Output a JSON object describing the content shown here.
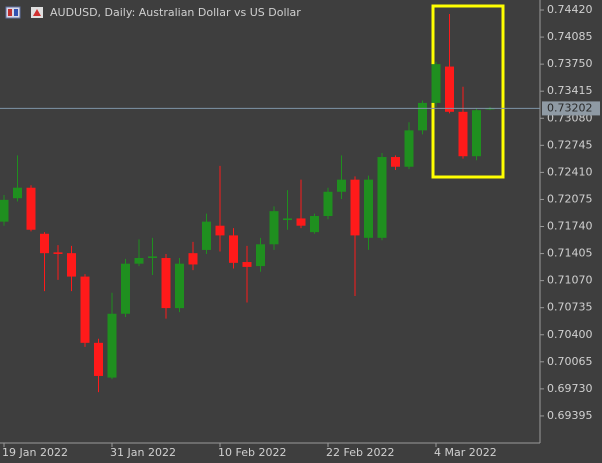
{
  "chart_data": {
    "type": "candlestick",
    "title": "AUDUSD, Daily:  Australian Dollar vs US Dollar",
    "categories": [
      "19 Jan 2022",
      null,
      null,
      null,
      null,
      null,
      null,
      null,
      "31 Jan 2022",
      null,
      null,
      null,
      null,
      null,
      null,
      null,
      "10 Feb 2022",
      null,
      null,
      null,
      null,
      null,
      null,
      null,
      "22 Feb 2022",
      null,
      null,
      null,
      null,
      null,
      null,
      null,
      "4 Mar 2022",
      null,
      null,
      null,
      null
    ],
    "open": [
      0.718,
      0.7209,
      0.7222,
      0.7165,
      0.7142,
      0.7141,
      0.7112,
      0.703,
      0.6987,
      0.7066,
      0.7128,
      0.7135,
      0.7135,
      0.7073,
      0.7141,
      0.7145,
      0.7175,
      0.7163,
      0.713,
      0.7125,
      0.7152,
      0.7182,
      0.7184,
      0.7167,
      0.7187,
      0.7217,
      0.7232,
      0.716,
      0.716,
      0.726,
      0.7248,
      0.7293,
      0.7327,
      0.7372,
      0.7316,
      0.7261,
      0.732
    ],
    "high": [
      0.7213,
      0.7262,
      0.7225,
      0.7167,
      0.7151,
      0.715,
      0.7115,
      0.7035,
      0.7092,
      0.7134,
      0.7158,
      0.716,
      0.714,
      0.7135,
      0.7155,
      0.719,
      0.7249,
      0.7172,
      0.715,
      0.716,
      0.7199,
      0.7219,
      0.7232,
      0.719,
      0.7222,
      0.7262,
      0.7236,
      0.7237,
      0.7265,
      0.7262,
      0.7303,
      0.733,
      0.7378,
      0.7437,
      0.7347,
      0.732,
      0.7322
    ],
    "low": [
      0.7175,
      0.7205,
      0.7168,
      0.7094,
      0.7108,
      0.7094,
      0.7025,
      0.6969,
      0.6985,
      0.7062,
      0.7125,
      0.7114,
      0.706,
      0.7068,
      0.712,
      0.714,
      0.7143,
      0.7122,
      0.708,
      0.7118,
      0.7145,
      0.717,
      0.7172,
      0.7165,
      0.7183,
      0.7208,
      0.7088,
      0.7145,
      0.7157,
      0.7244,
      0.7245,
      0.7288,
      0.7322,
      0.7314,
      0.7258,
      0.7256,
      0.7318
    ],
    "close": [
      0.7207,
      0.7222,
      0.717,
      0.7141,
      0.714,
      0.7112,
      0.703,
      0.6989,
      0.7066,
      0.7128,
      0.7135,
      0.7137,
      0.7073,
      0.7128,
      0.7127,
      0.718,
      0.7163,
      0.7129,
      0.7124,
      0.7152,
      0.7193,
      0.7184,
      0.7175,
      0.7187,
      0.7217,
      0.7232,
      0.7163,
      0.7232,
      0.726,
      0.7248,
      0.7293,
      0.7327,
      0.7375,
      0.7316,
      0.7261,
      0.7318,
      0.73202
    ],
    "up_color": "#1f8f1f",
    "down_color": "#ff1a1a",
    "last_price": 0.73202,
    "ylim": [
      0.6906,
      0.74544
    ],
    "yticks": [
      {
        "value": 0.7442,
        "label": "0.74420"
      },
      0.74085,
      {
        "value": 0.7375,
        "label": "0.73750"
      },
      0.73415,
      {
        "value": 0.7308,
        "label": "0.73080"
      },
      0.72745,
      {
        "value": 0.7241,
        "label": "0.72410"
      },
      0.72075,
      {
        "value": 0.7174,
        "label": "0.71740"
      },
      0.71405,
      {
        "value": 0.7107,
        "label": "0.71070"
      },
      0.70735,
      {
        "value": 0.704,
        "label": "0.70400"
      },
      0.70065,
      {
        "value": 0.6973,
        "label": "0.69730"
      },
      0.69395
    ],
    "grid": false
  }
}
